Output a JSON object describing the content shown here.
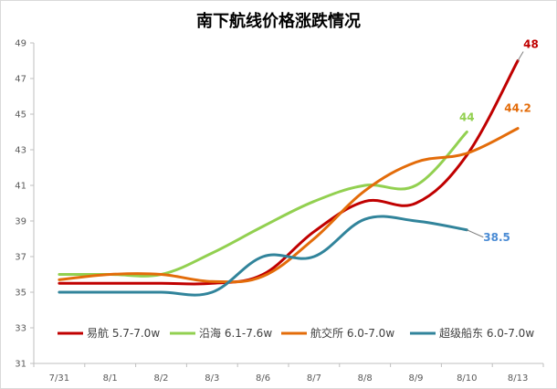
{
  "chart_data": {
    "type": "line",
    "title": "南下航线价格涨跌情况",
    "xlabel": "",
    "ylabel": "",
    "categories": [
      "7/31",
      "8/1",
      "8/2",
      "8/3",
      "8/6",
      "8/7",
      "8/8",
      "8/9",
      "8/10",
      "8/13"
    ],
    "y_ticks": [
      "31",
      "33",
      "35",
      "37",
      "39",
      "41",
      "43",
      "45",
      "47",
      "49"
    ],
    "ylim": [
      31,
      49
    ],
    "grid": false,
    "smooth": true,
    "legend_position": "bottom-inside",
    "series": [
      {
        "name": "易航 5.7-7.0w",
        "color": "#c00000",
        "values": [
          35.5,
          35.5,
          35.5,
          35.5,
          36.0,
          38.4,
          40.1,
          40.0,
          42.7,
          48
        ],
        "end_label": "48",
        "end_label_color": "#c00000"
      },
      {
        "name": "沿海 6.1-7.6w",
        "color": "#92d050",
        "values": [
          36.0,
          36.0,
          36.0,
          37.2,
          38.7,
          40.1,
          41.0,
          41.0,
          44,
          null
        ],
        "end_label": "44",
        "end_label_color": "#92d050"
      },
      {
        "name": "航交所 6.0-7.0w",
        "color": "#e36c0a",
        "values": [
          35.7,
          36.0,
          36.0,
          35.6,
          35.9,
          38.0,
          40.7,
          42.3,
          42.8,
          44.2
        ],
        "end_label": "44.2",
        "end_label_color": "#e36c0a"
      },
      {
        "name": "超级船东 6.0-7.0w",
        "color": "#31849b",
        "values": [
          35.0,
          35.0,
          35.0,
          35.0,
          37.0,
          37.0,
          39.1,
          39.0,
          38.5,
          null
        ],
        "end_label": "38.5",
        "end_label_color": "#4a8bd4"
      }
    ]
  }
}
